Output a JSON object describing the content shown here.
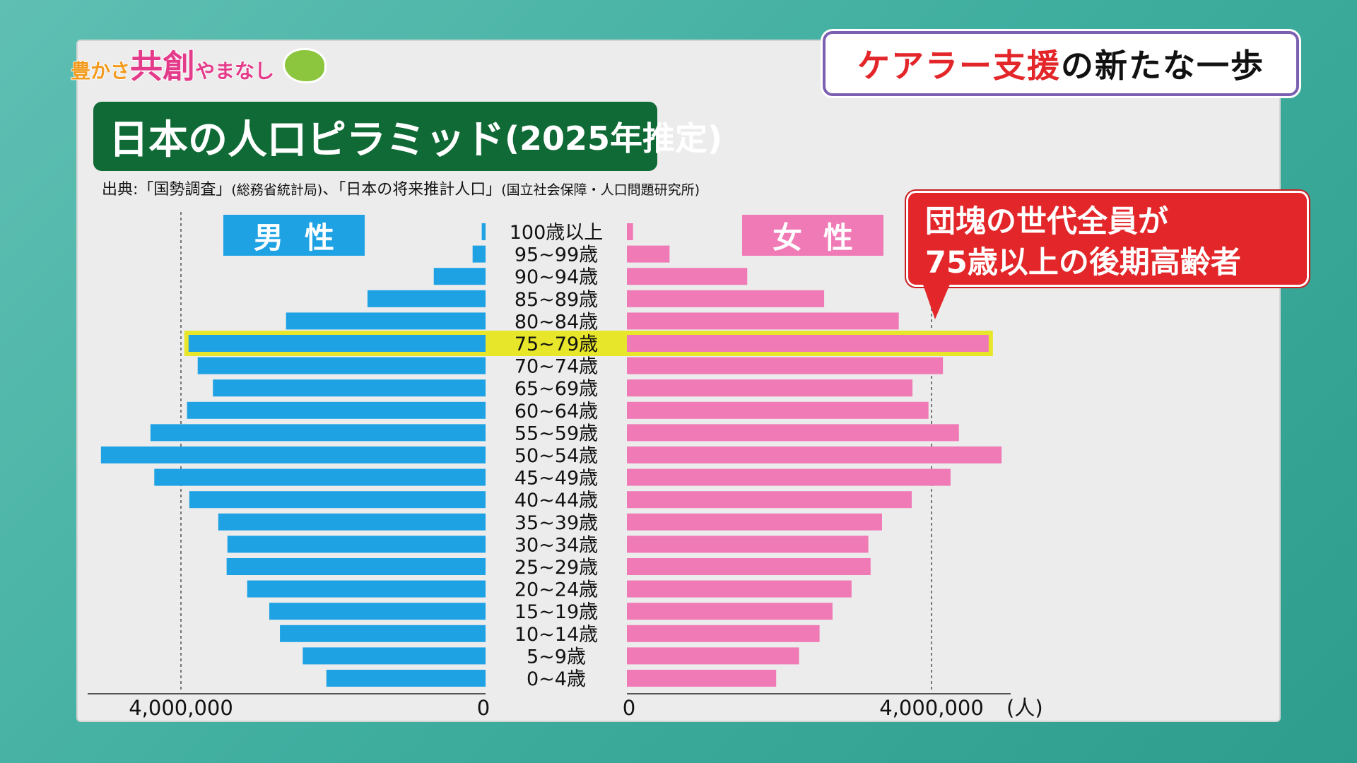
{
  "logo": {
    "text_parts": [
      "豊かさ",
      "共創",
      "やまなし"
    ]
  },
  "headline": {
    "red": "ケアラー支援",
    "black": "の新たな一歩"
  },
  "title": {
    "main": "日本の人口ピラミッド",
    "sub": "(2025年推定)"
  },
  "source": {
    "part1": "出典:「国勢調査」",
    "part2": "(総務省統計局)",
    "part3": "、「日本の将来推計人口」",
    "part4": "(国立社会保障・人口問題研究所)"
  },
  "callout": {
    "line1": "団塊の世代全員が",
    "line2": "75歳以上の後期高齢者"
  },
  "labels": {
    "male": "男性",
    "female": "女性"
  },
  "colors": {
    "male": "#1ea2e4",
    "female": "#f07ab6",
    "highlight": "#e8e62a",
    "title_bg": "#0f6a35",
    "callout_bg": "#e3262a"
  },
  "chart_data": {
    "type": "bar",
    "orientation": "horizontal-population-pyramid",
    "title": "日本の人口ピラミッド(2025年推定)",
    "categories": [
      "100歳以上",
      "95~99歳",
      "90~94歳",
      "85~89歳",
      "80~84歳",
      "75~79歳",
      "70~74歳",
      "65~69歳",
      "60~64歳",
      "55~59歳",
      "50~54歳",
      "45~49歳",
      "40~44歳",
      "35~39歳",
      "30~34歳",
      "25~29歳",
      "20~24歳",
      "15~19歳",
      "10~14歳",
      "5~9歳",
      "0~4歳"
    ],
    "series": [
      {
        "name": "男性",
        "values": [
          50000,
          170000,
          680000,
          1550000,
          2620000,
          3900000,
          3780000,
          3580000,
          3920000,
          4400000,
          5050000,
          4350000,
          3890000,
          3510000,
          3390000,
          3400000,
          3130000,
          2840000,
          2700000,
          2400000,
          2090000
        ]
      },
      {
        "name": "女性",
        "values": [
          80000,
          560000,
          1580000,
          2590000,
          3570000,
          4750000,
          4150000,
          3750000,
          3960000,
          4360000,
          4920000,
          4250000,
          3740000,
          3350000,
          3170000,
          3200000,
          2950000,
          2700000,
          2530000,
          2260000,
          1960000
        ]
      }
    ],
    "highlight_category": "75~79歳",
    "axis": {
      "male_tick": "4,000,000",
      "male_zero": "0",
      "female_zero": "0",
      "female_tick": "4,000,000",
      "unit": "(人)"
    },
    "xlim": [
      0,
      5200000
    ],
    "grid": "dashed lines at 4,000,000"
  }
}
